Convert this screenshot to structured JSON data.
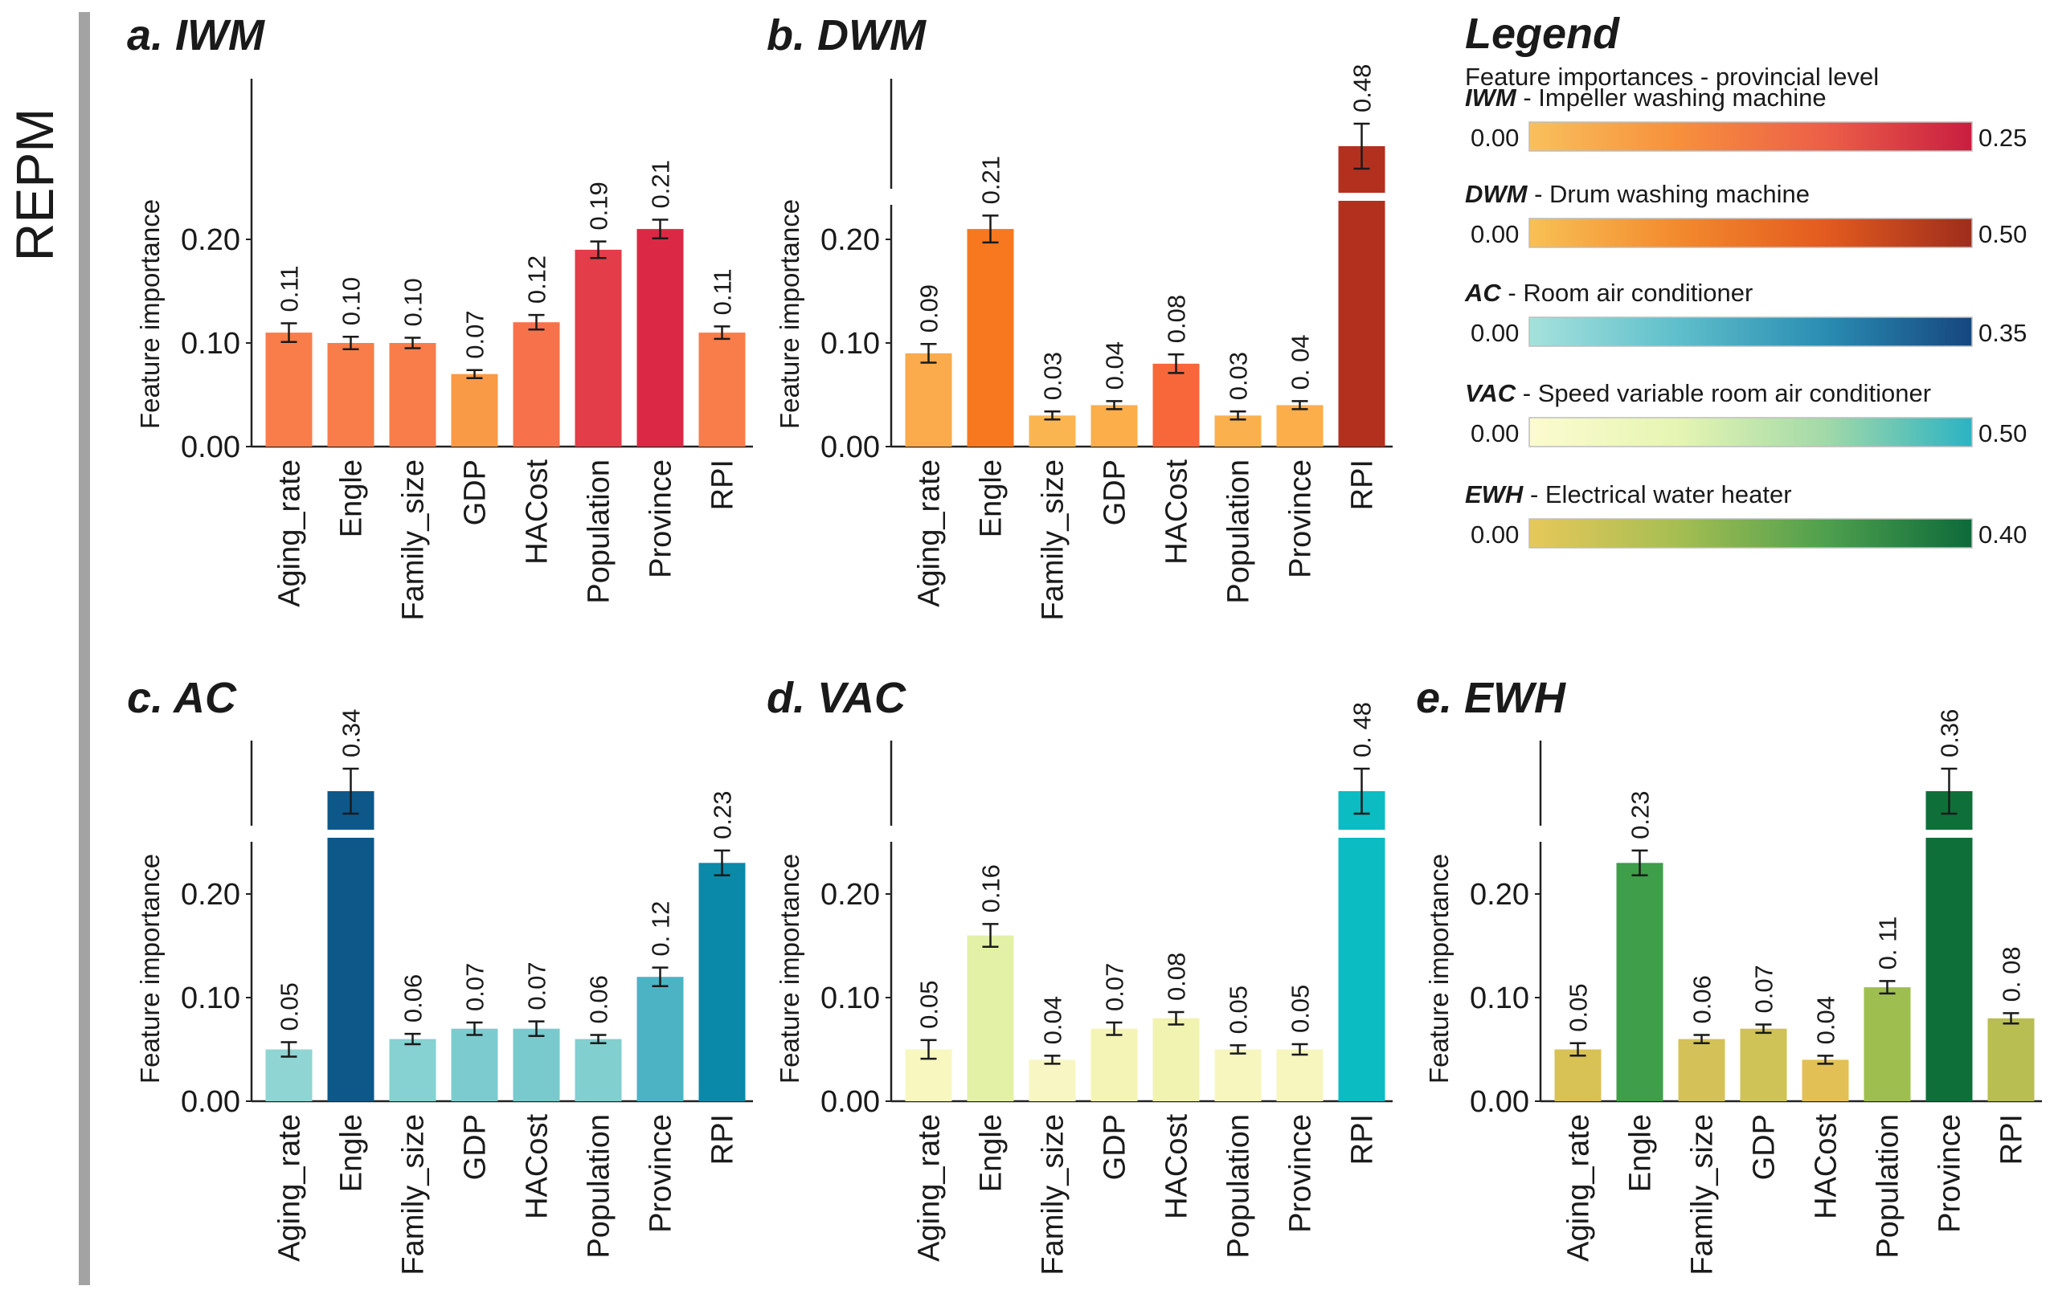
{
  "side_label": "REPM",
  "legend": {
    "title": "Legend",
    "subtitle": "Feature importances - provincial level",
    "items": [
      {
        "abbr": "IWM",
        "desc": " - Impeller washing machine",
        "min_label": "0.00",
        "max_label": "0.25",
        "colors": [
          "#f9c05c",
          "#f7903c",
          "#ec5f48",
          "#c81e40"
        ]
      },
      {
        "abbr": "DWM",
        "desc": " - Drum washing machine",
        "min_label": "0.00",
        "max_label": "0.50",
        "colors": [
          "#f8c155",
          "#f38a2e",
          "#e35b1f",
          "#9e2d1c"
        ]
      },
      {
        "abbr": "AC",
        "desc": " - Room air conditioner",
        "min_label": "0.00",
        "max_label": "0.35",
        "colors": [
          "#a6e2dd",
          "#5fbfcb",
          "#2a8db2",
          "#16467f"
        ]
      },
      {
        "abbr": "VAC",
        "desc": " - Speed variable room air conditioner",
        "min_label": "0.00",
        "max_label": "0.50",
        "colors": [
          "#fcfbd0",
          "#e6f5b3",
          "#a3d9a8",
          "#2bb3c3"
        ]
      },
      {
        "abbr": "EWH",
        "desc": " - Electrical water heater",
        "min_label": "0.00",
        "max_label": "0.40",
        "colors": [
          "#e8c85a",
          "#a6be52",
          "#4fa04e",
          "#0d6a3a"
        ]
      }
    ]
  },
  "chart_data": [
    {
      "type": "bar",
      "title": "a. IWM",
      "ylabel": "Feature importance",
      "categories": [
        "Aging_rate",
        "Engle",
        "Family_size",
        "GDP",
        "HACost",
        "Population",
        "Province",
        "RPI"
      ],
      "values": [
        0.11,
        0.1,
        0.1,
        0.07,
        0.12,
        0.19,
        0.21,
        0.11
      ],
      "errors": [
        0.009,
        0.006,
        0.005,
        0.003,
        0.007,
        0.008,
        0.009,
        0.006
      ],
      "value_labels": [
        "0.11",
        "0.10",
        "0.10",
        "0.07",
        "0.12",
        "0.19",
        "0.21",
        "0.11"
      ],
      "colors": [
        "#f97d4a",
        "#f97d4a",
        "#f97d4a",
        "#f99a46",
        "#f7714a",
        "#e33d4a",
        "#db2945",
        "#f97d4a"
      ],
      "yticks": [
        "0.00",
        "0.10",
        "0.20"
      ],
      "ylim": [
        0,
        0.25
      ],
      "axis_break": false
    },
    {
      "type": "bar",
      "title": "b. DWM",
      "ylabel": "Feature importance",
      "categories": [
        "Aging_rate",
        "Engle",
        "Family_size",
        "GDP",
        "HACost",
        "Population",
        "Province",
        "RPI"
      ],
      "values": [
        0.09,
        0.21,
        0.03,
        0.04,
        0.08,
        0.03,
        0.04,
        0.48
      ],
      "errors": [
        0.009,
        0.013,
        0.002,
        0.003,
        0.009,
        0.003,
        0.003,
        0.02
      ],
      "value_labels": [
        "0.09",
        "0.21",
        "0.03",
        "0.04",
        "0.08",
        "0.03",
        "0. 04",
        "0.48"
      ],
      "colors": [
        "#fbaa4c",
        "#f7781f",
        "#fbb550",
        "#fbae4a",
        "#f8673a",
        "#fbb04e",
        "#fbae4a",
        "#b4301e"
      ],
      "yticks": [
        "0.00",
        "0.10",
        "0.20"
      ],
      "ylim": [
        0,
        0.25
      ],
      "axis_break": true
    },
    {
      "type": "bar",
      "title": "c. AC",
      "ylabel": "Feature importance",
      "categories": [
        "Aging_rate",
        "Engle",
        "Family_size",
        "GDP",
        "HACost",
        "Population",
        "Province",
        "RPI"
      ],
      "values": [
        0.05,
        0.34,
        0.06,
        0.07,
        0.07,
        0.06,
        0.12,
        0.23
      ],
      "errors": [
        0.007,
        0.03,
        0.005,
        0.006,
        0.007,
        0.004,
        0.009,
        0.012
      ],
      "value_labels": [
        "0.05",
        "0.34",
        "0.06",
        "0.07",
        "0.07",
        "0.06",
        "0. 12",
        "0.23"
      ],
      "colors": [
        "#8fd5d3",
        "#0e5889",
        "#86d1d1",
        "#7ccccf",
        "#78cacd",
        "#82cfd0",
        "#4cb3c4",
        "#0a8aa8"
      ],
      "yticks": [
        "0.00",
        "0.10",
        "0.20"
      ],
      "ylim": [
        0,
        0.25
      ],
      "axis_break": true
    },
    {
      "type": "bar",
      "title": "d. VAC",
      "ylabel": "Feature importance",
      "categories": [
        "Aging_rate",
        "Engle",
        "Family_size",
        "GDP",
        "HACost",
        "Population",
        "Province",
        "RPI"
      ],
      "values": [
        0.05,
        0.16,
        0.04,
        0.07,
        0.08,
        0.05,
        0.05,
        0.48
      ],
      "errors": [
        0.009,
        0.011,
        0.003,
        0.006,
        0.006,
        0.004,
        0.005,
        0.02
      ],
      "value_labels": [
        "0.05",
        "0.16",
        "0.04",
        "0.07",
        "0.08",
        "0.05",
        "0.05",
        "0. 48"
      ],
      "colors": [
        "#f8f7bf",
        "#e2f1a5",
        "#f8f7c3",
        "#f4f4b6",
        "#f1f3b0",
        "#f7f6bf",
        "#f7f6bf",
        "#0bbcc3"
      ],
      "yticks": [
        "0.00",
        "0.10",
        "0.20"
      ],
      "ylim": [
        0,
        0.25
      ],
      "axis_break": true
    },
    {
      "type": "bar",
      "title": "e. EWH",
      "ylabel": "Feature importance",
      "categories": [
        "Aging_rate",
        "Engle",
        "Family_size",
        "GDP",
        "HACost",
        "Population",
        "Province",
        "RPI"
      ],
      "values": [
        0.05,
        0.23,
        0.06,
        0.07,
        0.04,
        0.11,
        0.36,
        0.08
      ],
      "errors": [
        0.006,
        0.012,
        0.004,
        0.004,
        0.003,
        0.006,
        0.02,
        0.005
      ],
      "value_labels": [
        "0.05",
        "0.23",
        "0.06",
        "0.07",
        "0.04",
        "0. 11",
        "0.36",
        "0. 08"
      ],
      "colors": [
        "#d9c255",
        "#3e9e49",
        "#d4c258",
        "#cfc256",
        "#e3c055",
        "#9ebf4f",
        "#0e7038",
        "#b8be52"
      ],
      "yticks": [
        "0.00",
        "0.10",
        "0.20"
      ],
      "ylim": [
        0,
        0.25
      ],
      "axis_break": true
    }
  ]
}
